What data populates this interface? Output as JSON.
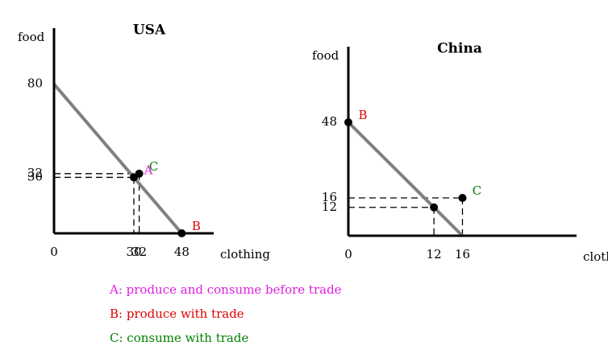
{
  "chart_data": [
    {
      "type": "line",
      "title": "USA",
      "x_label": "clothing",
      "y_label": "food",
      "xlim": [
        0,
        60
      ],
      "ylim": [
        0,
        110
      ],
      "xticks": [
        0,
        30,
        32,
        48
      ],
      "yticks": [
        80,
        32,
        30
      ],
      "series": [
        {
          "color": "#808080",
          "x": [
            0,
            48
          ],
          "values": [
            80,
            0
          ]
        }
      ],
      "points": [
        {
          "label": "A",
          "x": 30,
          "y": 30,
          "color": "#e020e0",
          "dashed": true
        },
        {
          "label": "B",
          "x": 48,
          "y": 0,
          "color": "#e00000",
          "dashed": false
        },
        {
          "label": "C",
          "x": 32,
          "y": 32,
          "color": "#008000",
          "dashed": true
        }
      ]
    },
    {
      "type": "line",
      "title": "China",
      "x_label": "clothing",
      "y_label": "food",
      "xlim": [
        0,
        32
      ],
      "ylim": [
        0,
        80
      ],
      "xticks": [
        0,
        12,
        16
      ],
      "yticks": [
        48,
        16,
        12
      ],
      "series": [
        {
          "color": "#808080",
          "x": [
            0,
            16
          ],
          "values": [
            48,
            0
          ]
        }
      ],
      "points": [
        {
          "label": "B",
          "x": 0,
          "y": 48,
          "color": "#e00000",
          "dashed": false
        },
        {
          "label": null,
          "x": 12,
          "y": 12,
          "color": "#000000",
          "dashed": true
        },
        {
          "label": "C",
          "x": 16,
          "y": 16,
          "color": "#008000",
          "dashed": true
        }
      ]
    }
  ],
  "legend": [
    {
      "text": "A: produce and consume before trade",
      "color": "#e020e0"
    },
    {
      "text": "B: produce with trade",
      "color": "#e00000"
    },
    {
      "text": "C: consume with trade",
      "color": "#008000"
    }
  ]
}
